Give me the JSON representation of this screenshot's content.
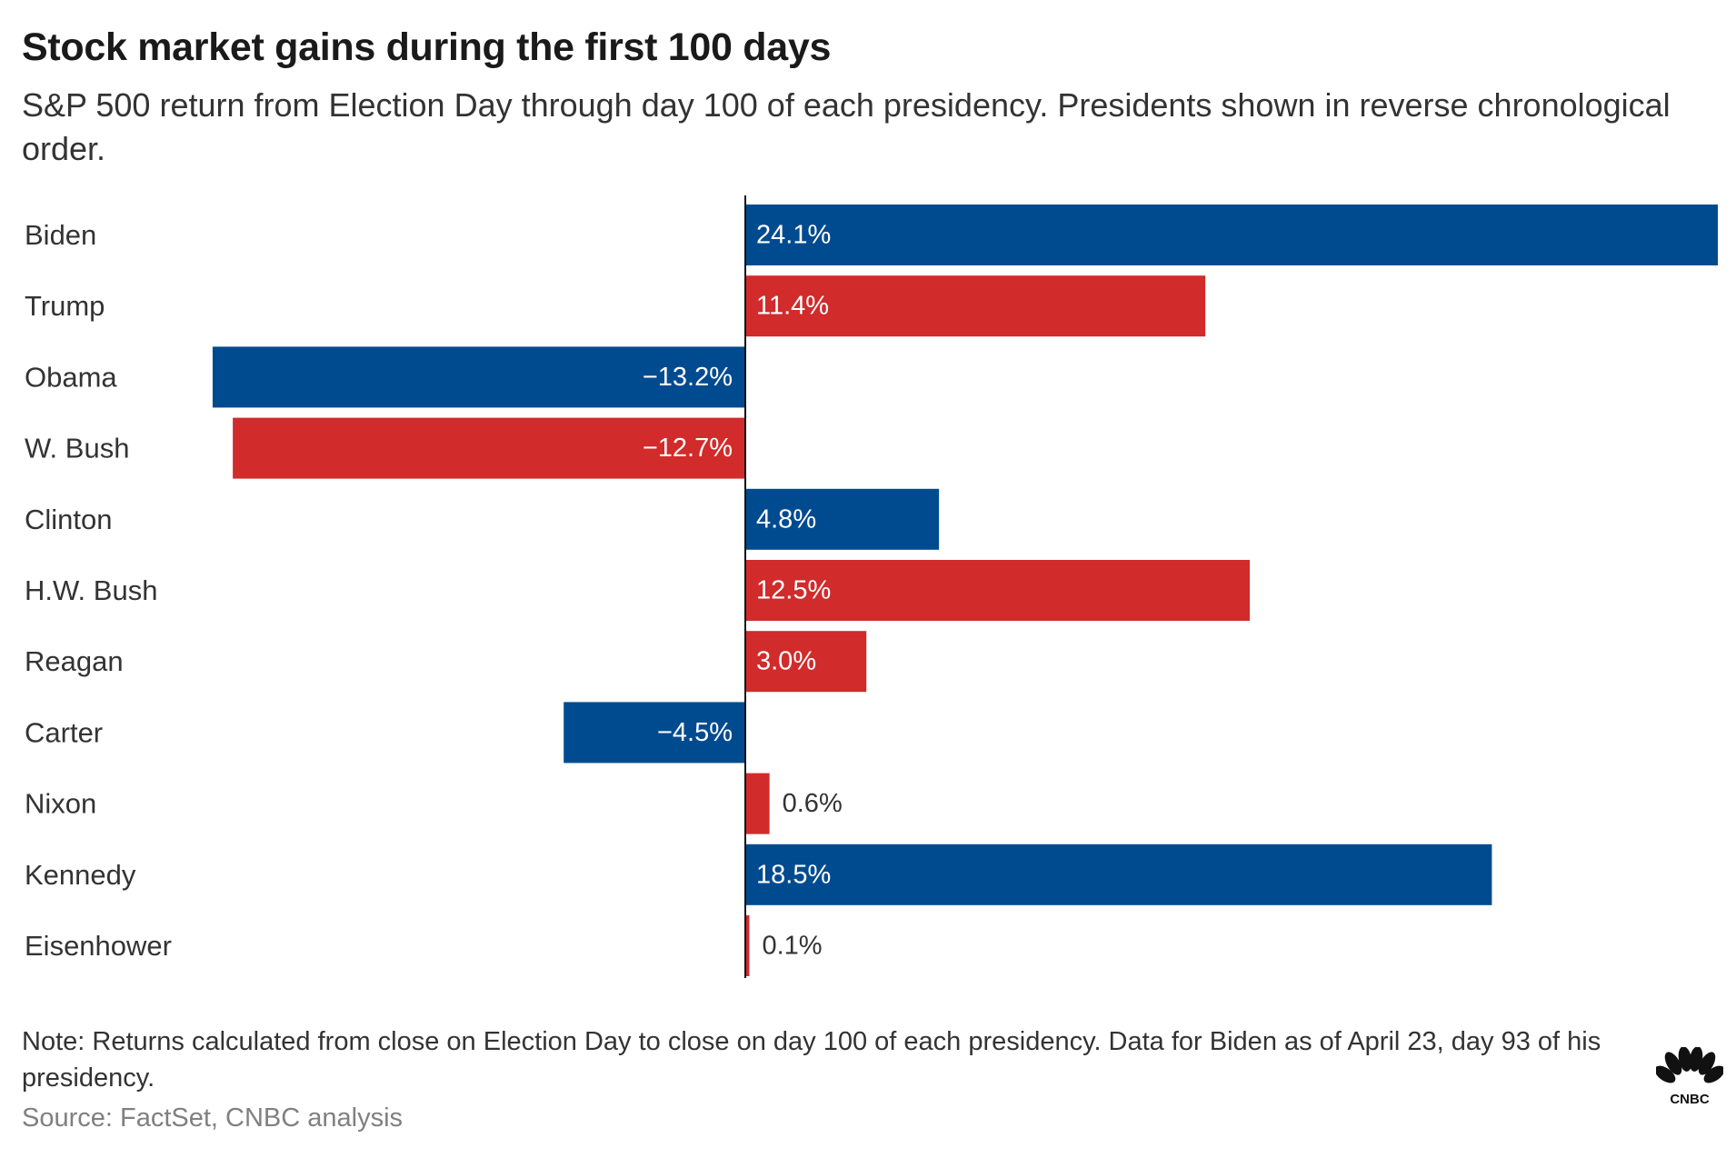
{
  "title": "Stock market gains during the first 100 days",
  "subtitle": "S&P 500 return from Election Day through day 100 of each presidency. Presidents shown in reverse chronological order.",
  "note": "Note: Returns calculated from close on Election Day to close on day 100 of each presidency. Data for Biden as of April 23, day 93 of his presidency.",
  "source": "Source: FactSet, CNBC analysis",
  "logo_text": "CNBC",
  "colors": {
    "blue": "#004b8f",
    "red": "#d12b2b",
    "axis": "#111111",
    "label_outside": "#333333"
  },
  "chart_data": {
    "type": "bar",
    "orientation": "horizontal",
    "title": "Stock market gains during the first 100 days",
    "subtitle": "S&P 500 return from Election Day through day 100 of each presidency. Presidents shown in reverse chronological order.",
    "categories": [
      "Biden",
      "Trump",
      "Obama",
      "W. Bush",
      "Clinton",
      "H.W. Bush",
      "Reagan",
      "Carter",
      "Nixon",
      "Kennedy",
      "Eisenhower"
    ],
    "values": [
      24.1,
      11.4,
      -13.2,
      -12.7,
      4.8,
      12.5,
      3.0,
      -4.5,
      0.6,
      18.5,
      0.1
    ],
    "value_labels": [
      "24.1%",
      "11.4%",
      "−13.2%",
      "−12.7%",
      "4.8%",
      "12.5%",
      "3.0%",
      "−4.5%",
      "0.6%",
      "18.5%",
      "0.1%"
    ],
    "bar_colors": [
      "blue",
      "red",
      "blue",
      "red",
      "blue",
      "red",
      "red",
      "blue",
      "red",
      "blue",
      "red"
    ],
    "unit": "%",
    "xlim": [
      -13.2,
      24.1
    ],
    "grid": false,
    "legend": "none"
  }
}
